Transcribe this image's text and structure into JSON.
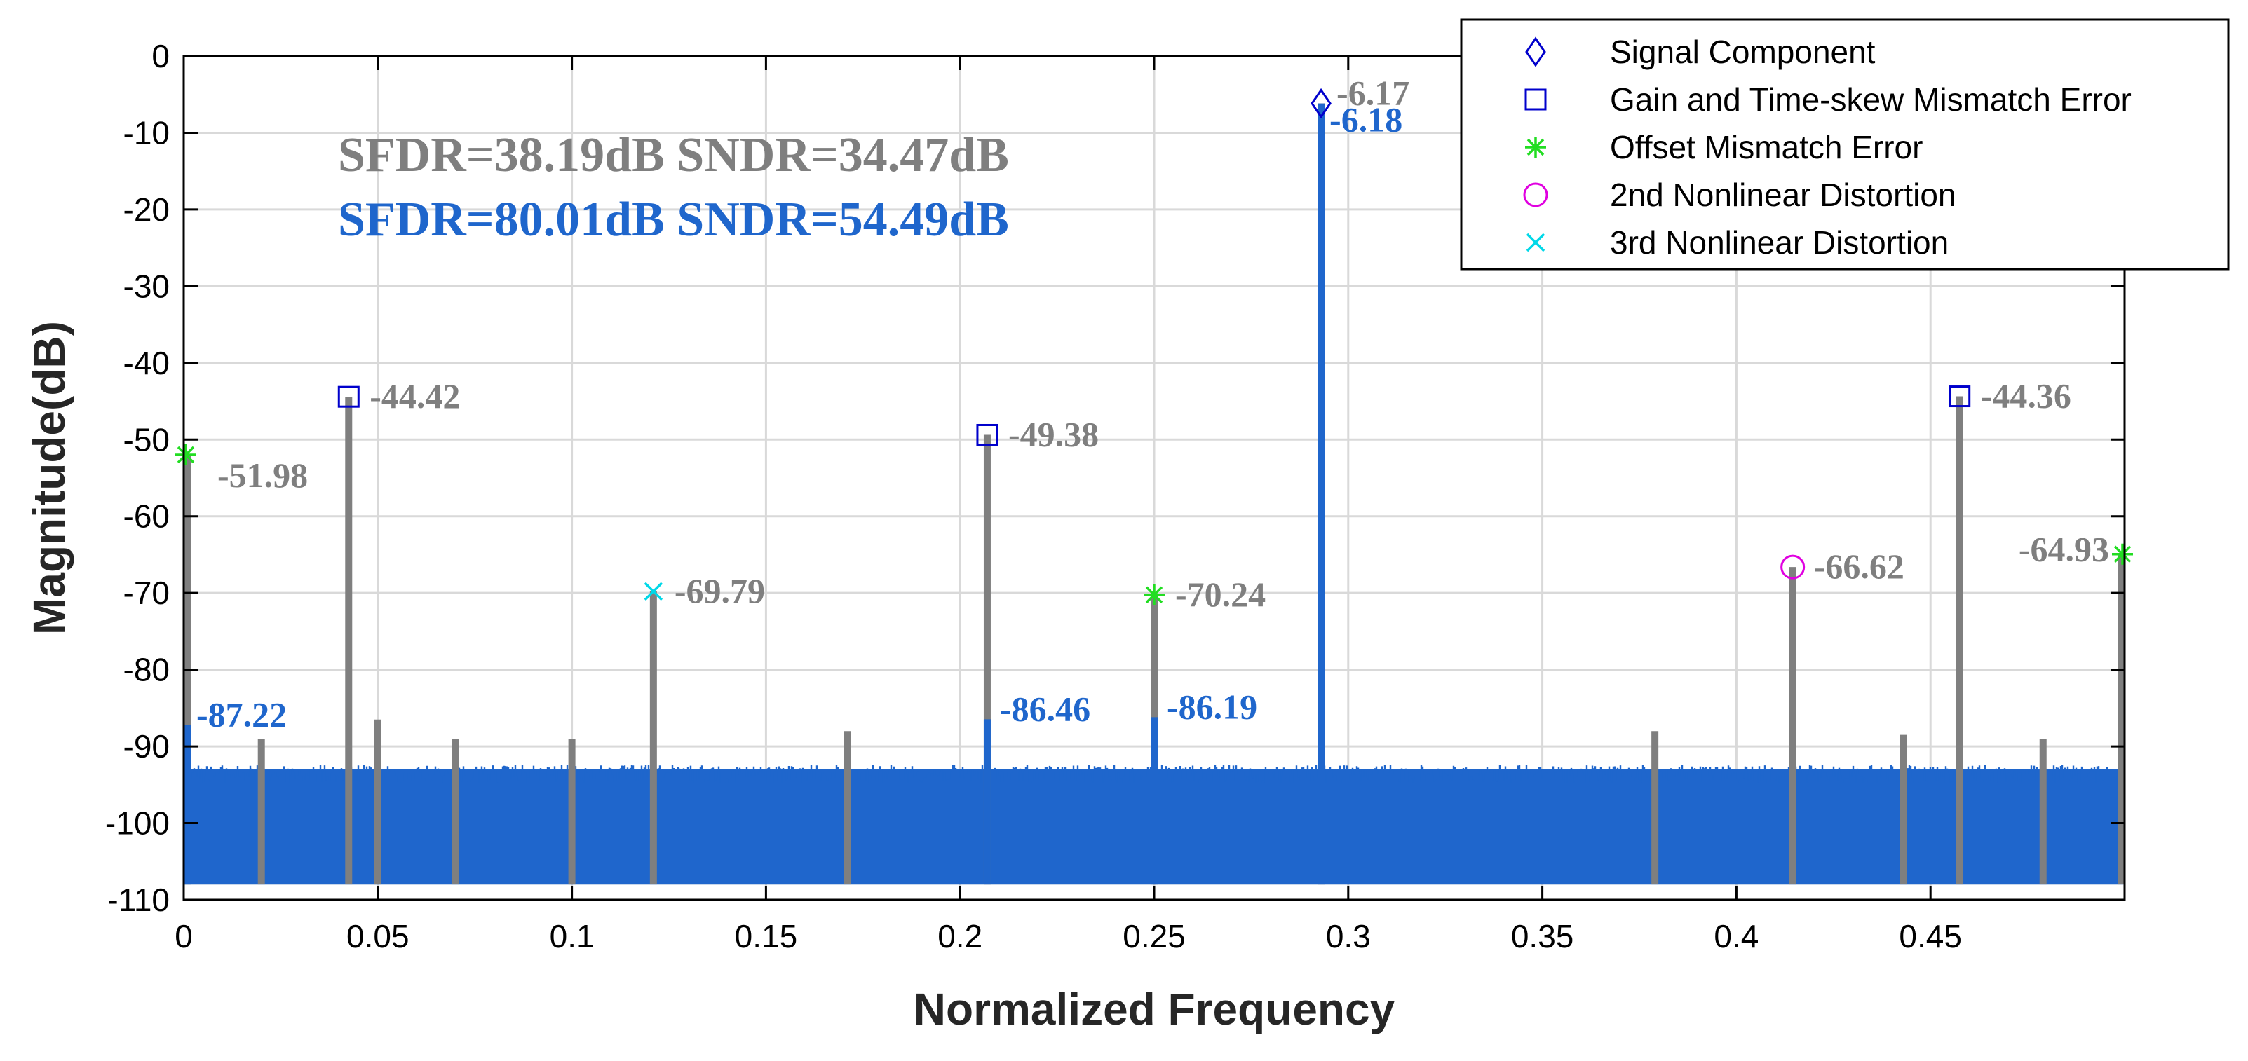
{
  "chart_data": {
    "type": "line",
    "xlabel": "Normalized Frequency",
    "ylabel": "Magnitude(dB)",
    "xlim": [
      0,
      0.5
    ],
    "ylim": [
      -110,
      0
    ],
    "x_ticks": [
      "0",
      "0.05",
      "0.1",
      "0.15",
      "0.2",
      "0.25",
      "0.3",
      "0.35",
      "0.4",
      "0.45"
    ],
    "x_tick_values": [
      0,
      0.05,
      0.1,
      0.15,
      0.2,
      0.25,
      0.3,
      0.35,
      0.4,
      0.45
    ],
    "y_ticks": [
      "0",
      "-10",
      "-20",
      "-30",
      "-40",
      "-50",
      "-60",
      "-70",
      "-80",
      "-90",
      "-100",
      "-110"
    ],
    "y_tick_values": [
      0,
      -10,
      -20,
      -30,
      -40,
      -50,
      -60,
      -70,
      -80,
      -90,
      -100,
      -110
    ],
    "grid": true,
    "legend_position": "top-right",
    "colors": {
      "before": "#7f7f7f",
      "after": "#1f66cc",
      "signal_marker": "#0000cc",
      "gain_marker": "#0000cc",
      "offset_marker": "#22dd22",
      "nl2_marker": "#e000e0",
      "nl3_marker": "#00d8e8"
    },
    "metrics": {
      "before": "SFDR=38.19dB SNDR=34.47dB",
      "after": "SFDR=80.01dB SNDR=54.49dB"
    },
    "series": [
      {
        "style": "gray",
        "spurs": [
          {
            "x": 0.0,
            "y": -51.98
          },
          {
            "x": 0.0425,
            "y": -44.42
          },
          {
            "x": 0.121,
            "y": -69.79
          },
          {
            "x": 0.207,
            "y": -49.38
          },
          {
            "x": 0.25,
            "y": -70.24
          },
          {
            "x": 0.293,
            "y": -6.17
          },
          {
            "x": 0.4145,
            "y": -66.62
          },
          {
            "x": 0.4575,
            "y": -44.36
          },
          {
            "x": 0.5,
            "y": -64.93
          },
          {
            "x": 0.02,
            "y": -89.0
          },
          {
            "x": 0.05,
            "y": -86.5
          },
          {
            "x": 0.07,
            "y": -89.0
          },
          {
            "x": 0.1,
            "y": -89.0
          },
          {
            "x": 0.171,
            "y": -88.0
          },
          {
            "x": 0.379,
            "y": -88.0
          },
          {
            "x": 0.443,
            "y": -88.5
          },
          {
            "x": 0.479,
            "y": -89.0
          }
        ]
      },
      {
        "style": "blue",
        "spurs": [
          {
            "x": 0.0,
            "y": -87.22
          },
          {
            "x": 0.207,
            "y": -86.46
          },
          {
            "x": 0.25,
            "y": -86.19
          },
          {
            "x": 0.293,
            "y": -6.18
          }
        ]
      }
    ],
    "noise_band": {
      "top": -94,
      "bottom": -108
    },
    "markers": [
      {
        "kind": "diamond",
        "color_key": "signal_marker",
        "x": 0.293,
        "y": -6.17
      },
      {
        "kind": "square",
        "color_key": "gain_marker",
        "x": 0.0425,
        "y": -44.42
      },
      {
        "kind": "square",
        "color_key": "gain_marker",
        "x": 0.207,
        "y": -49.38
      },
      {
        "kind": "square",
        "color_key": "gain_marker",
        "x": 0.4575,
        "y": -44.36
      },
      {
        "kind": "star",
        "color_key": "offset_marker",
        "x": 0.0,
        "y": -51.98
      },
      {
        "kind": "star",
        "color_key": "offset_marker",
        "x": 0.25,
        "y": -70.24
      },
      {
        "kind": "star",
        "color_key": "offset_marker",
        "x": 0.5,
        "y": -64.93
      },
      {
        "kind": "circle",
        "color_key": "nl2_marker",
        "x": 0.4145,
        "y": -66.62
      },
      {
        "kind": "xmark",
        "color_key": "nl3_marker",
        "x": 0.121,
        "y": -69.79
      }
    ],
    "annotations": [
      {
        "text": "-51.98",
        "color_key": "before",
        "x": 0.0,
        "y": -51.98,
        "anchor": "below-right"
      },
      {
        "text": "-44.42",
        "color_key": "before",
        "x": 0.0425,
        "y": -44.42,
        "anchor": "right"
      },
      {
        "text": "-69.79",
        "color_key": "before",
        "x": 0.121,
        "y": -69.79,
        "anchor": "right"
      },
      {
        "text": "-49.38",
        "color_key": "before",
        "x": 0.207,
        "y": -49.38,
        "anchor": "right"
      },
      {
        "text": "-70.24",
        "color_key": "before",
        "x": 0.25,
        "y": -70.24,
        "anchor": "right"
      },
      {
        "text": "-6.17",
        "color_key": "before",
        "x": 0.293,
        "y": -6.17,
        "anchor": "above-right"
      },
      {
        "text": "-66.62",
        "color_key": "before",
        "x": 0.4145,
        "y": -66.62,
        "anchor": "right"
      },
      {
        "text": "-44.36",
        "color_key": "before",
        "x": 0.4575,
        "y": -44.36,
        "anchor": "right"
      },
      {
        "text": "-64.93",
        "color_key": "before",
        "x": 0.5,
        "y": -64.93,
        "anchor": "left"
      },
      {
        "text": "-87.22",
        "color_key": "after",
        "x": 0.0,
        "y": -87.22,
        "anchor": "right"
      },
      {
        "text": "-86.46",
        "color_key": "after",
        "x": 0.207,
        "y": -86.46,
        "anchor": "right"
      },
      {
        "text": "-86.19",
        "color_key": "after",
        "x": 0.25,
        "y": -86.19,
        "anchor": "right"
      },
      {
        "text": "-6.18",
        "color_key": "after",
        "x": 0.293,
        "y": -6.18,
        "anchor": "below-right"
      }
    ],
    "legend": [
      {
        "label": "Signal Component",
        "kind": "diamond",
        "color_key": "signal_marker"
      },
      {
        "label": "Gain and Time-skew Mismatch Error",
        "kind": "square",
        "color_key": "gain_marker"
      },
      {
        "label": "Offset Mismatch Error",
        "kind": "star",
        "color_key": "offset_marker"
      },
      {
        "label": "2nd Nonlinear Distortion",
        "kind": "circle",
        "color_key": "nl2_marker"
      },
      {
        "label": "3rd Nonlinear Distortion",
        "kind": "xmark",
        "color_key": "nl3_marker"
      }
    ]
  }
}
